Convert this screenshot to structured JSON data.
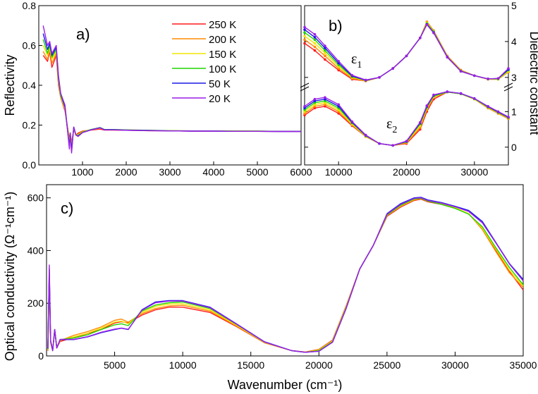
{
  "colors": {
    "250K": "#ff1c1c",
    "200K": "#ff8a00",
    "150K": "#f2e600",
    "100K": "#1fd400",
    "50K": "#1a1ae6",
    "20K": "#9b1fe8"
  },
  "legend": [
    {
      "key": "250K",
      "label": "250 K"
    },
    {
      "key": "200K",
      "label": "200 K"
    },
    {
      "key": "150K",
      "label": "150 K"
    },
    {
      "key": "100K",
      "label": "100 K"
    },
    {
      "key": "50K",
      "label": "50 K"
    },
    {
      "key": "20K",
      "label": "20 K"
    }
  ],
  "panels": {
    "a": {
      "letter": "a)",
      "ylabel": "Reflectivity"
    },
    "b": {
      "letter": "b)",
      "ylabel_right": "Dielectric constant",
      "eps1_base": "ε",
      "eps1_sub": "1",
      "eps2_base": "ε",
      "eps2_sub": "2"
    },
    "c": {
      "letter": "c)",
      "ylabel": "Optical conductivity (Ω⁻¹cm⁻¹)",
      "xlabel": "Wavenumber (cm⁻¹)"
    }
  },
  "chart_data": [
    {
      "id": "a",
      "type": "line",
      "xlim": [
        0,
        6000
      ],
      "ylim": [
        0,
        0.8
      ],
      "x_ticks": [
        "1000",
        "2000",
        "3000",
        "4000",
        "5000",
        "6000"
      ],
      "y_ticks": [
        "0.0",
        "0.2",
        "0.4",
        "0.6",
        "0.8"
      ],
      "ylabel": "Reflectivity",
      "x": [
        100,
        200,
        250,
        300,
        400,
        450,
        500,
        600,
        650,
        700,
        720,
        750,
        800,
        850,
        900,
        1000,
        1200,
        1400,
        1500,
        1700,
        2000,
        2500,
        3000,
        3500,
        4000,
        4500,
        5000,
        5500,
        6000
      ],
      "series": [
        {
          "key": "250K",
          "values": [
            0.55,
            0.52,
            0.57,
            0.49,
            0.55,
            0.4,
            0.34,
            0.27,
            0.2,
            0.13,
            0.16,
            0.11,
            0.18,
            0.15,
            0.16,
            0.17,
            0.175,
            0.18,
            0.175,
            0.175,
            0.174,
            0.172,
            0.171,
            0.17,
            0.17,
            0.17,
            0.169,
            0.168,
            0.168
          ]
        },
        {
          "key": "200K",
          "values": [
            0.57,
            0.53,
            0.58,
            0.51,
            0.56,
            0.41,
            0.34,
            0.28,
            0.2,
            0.12,
            0.16,
            0.1,
            0.18,
            0.15,
            0.155,
            0.168,
            0.177,
            0.183,
            0.177,
            0.177,
            0.175,
            0.173,
            0.172,
            0.171,
            0.171,
            0.17,
            0.17,
            0.169,
            0.169
          ]
        },
        {
          "key": "150K",
          "values": [
            0.6,
            0.55,
            0.59,
            0.53,
            0.57,
            0.42,
            0.35,
            0.28,
            0.19,
            0.11,
            0.16,
            0.09,
            0.185,
            0.15,
            0.15,
            0.166,
            0.178,
            0.186,
            0.178,
            0.178,
            0.176,
            0.174,
            0.172,
            0.171,
            0.171,
            0.17,
            0.17,
            0.169,
            0.169
          ]
        },
        {
          "key": "100K",
          "values": [
            0.63,
            0.56,
            0.6,
            0.54,
            0.58,
            0.43,
            0.35,
            0.29,
            0.19,
            0.1,
            0.16,
            0.08,
            0.19,
            0.15,
            0.148,
            0.165,
            0.178,
            0.188,
            0.178,
            0.178,
            0.176,
            0.174,
            0.172,
            0.171,
            0.171,
            0.17,
            0.17,
            0.169,
            0.169
          ]
        },
        {
          "key": "50K",
          "values": [
            0.66,
            0.58,
            0.61,
            0.55,
            0.59,
            0.44,
            0.36,
            0.29,
            0.19,
            0.09,
            0.16,
            0.07,
            0.19,
            0.15,
            0.145,
            0.163,
            0.177,
            0.187,
            0.177,
            0.177,
            0.175,
            0.173,
            0.171,
            0.17,
            0.17,
            0.169,
            0.169,
            0.168,
            0.168
          ]
        },
        {
          "key": "20K",
          "values": [
            0.7,
            0.6,
            0.62,
            0.56,
            0.6,
            0.45,
            0.36,
            0.3,
            0.19,
            0.08,
            0.16,
            0.06,
            0.19,
            0.15,
            0.143,
            0.162,
            0.176,
            0.186,
            0.176,
            0.176,
            0.174,
            0.172,
            0.171,
            0.17,
            0.17,
            0.169,
            0.169,
            0.168,
            0.168
          ]
        }
      ]
    },
    {
      "id": "b",
      "type": "line",
      "xlim": [
        5000,
        35000
      ],
      "ylim": [
        -0.5,
        5
      ],
      "x_ticks": [
        "10000",
        "20000",
        "30000"
      ],
      "y_ticks": [
        "0",
        "1",
        "3",
        "4",
        "5"
      ],
      "ylabel": "Dielectric constant",
      "x": [
        5000,
        6500,
        8000,
        10000,
        12000,
        14000,
        16000,
        18000,
        20000,
        22000,
        23000,
        24000,
        26000,
        28000,
        30000,
        32000,
        33500,
        35000
      ],
      "eps1": [
        {
          "key": "250K",
          "values": [
            3.95,
            3.75,
            3.5,
            3.2,
            2.95,
            2.9,
            3.0,
            3.25,
            3.6,
            4.1,
            4.55,
            4.3,
            3.6,
            3.2,
            3.05,
            2.95,
            2.95,
            3.15
          ]
        },
        {
          "key": "200K",
          "values": [
            4.05,
            3.85,
            3.6,
            3.25,
            2.97,
            2.9,
            3.0,
            3.25,
            3.6,
            4.1,
            4.55,
            4.3,
            3.6,
            3.2,
            3.05,
            2.95,
            2.95,
            3.15
          ]
        },
        {
          "key": "150K",
          "values": [
            4.15,
            3.95,
            3.68,
            3.3,
            3.0,
            2.91,
            3.0,
            3.25,
            3.6,
            4.1,
            4.52,
            4.28,
            3.58,
            3.18,
            3.05,
            2.95,
            2.95,
            3.17
          ]
        },
        {
          "key": "100K",
          "values": [
            4.25,
            4.05,
            3.75,
            3.35,
            3.02,
            2.92,
            3.0,
            3.25,
            3.6,
            4.1,
            4.5,
            4.27,
            3.57,
            3.18,
            3.05,
            2.96,
            2.96,
            3.2
          ]
        },
        {
          "key": "50K",
          "values": [
            4.33,
            4.12,
            3.82,
            3.4,
            3.04,
            2.92,
            3.0,
            3.25,
            3.6,
            4.1,
            4.48,
            4.25,
            3.57,
            3.17,
            3.05,
            2.96,
            2.97,
            3.22
          ]
        },
        {
          "key": "20K",
          "values": [
            4.4,
            4.2,
            3.88,
            3.45,
            3.06,
            2.93,
            3.0,
            3.25,
            3.6,
            4.1,
            4.47,
            4.24,
            3.56,
            3.17,
            3.05,
            2.96,
            2.97,
            3.25
          ]
        }
      ],
      "eps2": [
        {
          "key": "250K",
          "values": [
            0.9,
            1.1,
            1.15,
            0.95,
            0.6,
            0.3,
            0.1,
            0.05,
            0.1,
            0.5,
            1.0,
            1.35,
            1.55,
            1.5,
            1.35,
            1.1,
            0.95,
            0.8
          ]
        },
        {
          "key": "200K",
          "values": [
            0.95,
            1.15,
            1.2,
            1.0,
            0.62,
            0.3,
            0.1,
            0.05,
            0.12,
            0.55,
            1.05,
            1.4,
            1.55,
            1.5,
            1.35,
            1.1,
            0.95,
            0.8
          ]
        },
        {
          "key": "150K",
          "values": [
            1.0,
            1.2,
            1.25,
            1.05,
            0.65,
            0.31,
            0.1,
            0.05,
            0.14,
            0.6,
            1.1,
            1.42,
            1.55,
            1.5,
            1.35,
            1.12,
            0.97,
            0.82
          ]
        },
        {
          "key": "100K",
          "values": [
            1.05,
            1.25,
            1.3,
            1.1,
            0.68,
            0.32,
            0.1,
            0.05,
            0.15,
            0.65,
            1.12,
            1.44,
            1.55,
            1.5,
            1.36,
            1.13,
            0.98,
            0.83
          ]
        },
        {
          "key": "50K",
          "values": [
            1.1,
            1.3,
            1.35,
            1.15,
            0.7,
            0.33,
            0.1,
            0.05,
            0.16,
            0.68,
            1.15,
            1.46,
            1.56,
            1.51,
            1.37,
            1.14,
            0.99,
            0.84
          ]
        },
        {
          "key": "20K",
          "values": [
            1.15,
            1.35,
            1.4,
            1.2,
            0.72,
            0.34,
            0.1,
            0.05,
            0.17,
            0.7,
            1.17,
            1.47,
            1.56,
            1.51,
            1.37,
            1.15,
            1.0,
            0.85
          ]
        }
      ]
    },
    {
      "id": "c",
      "type": "line",
      "xlim": [
        0,
        35000
      ],
      "ylim": [
        0,
        650
      ],
      "x_ticks": [
        "5000",
        "10000",
        "15000",
        "20000",
        "25000",
        "30000",
        "35000"
      ],
      "y_ticks": [
        "0",
        "200",
        "400",
        "600"
      ],
      "xlabel": "Wavenumber (cm⁻¹)",
      "ylabel": "Optical conductivity (Ω⁻¹cm⁻¹)",
      "x": [
        100,
        200,
        300,
        450,
        600,
        750,
        1000,
        2000,
        3000,
        4000,
        5000,
        5500,
        6000,
        7000,
        8000,
        9000,
        10000,
        12000,
        14000,
        16000,
        18000,
        19000,
        20000,
        21000,
        22000,
        23000,
        24000,
        25000,
        26000,
        27000,
        27500,
        28000,
        29000,
        30000,
        31000,
        32000,
        33000,
        34000,
        35000
      ],
      "series": [
        {
          "key": "250K",
          "values": [
            20,
            300,
            50,
            20,
            100,
            30,
            55,
            70,
            85,
            100,
            125,
            130,
            125,
            155,
            175,
            185,
            185,
            165,
            110,
            50,
            20,
            15,
            25,
            60,
            190,
            330,
            420,
            530,
            565,
            590,
            595,
            585,
            575,
            560,
            540,
            480,
            400,
            320,
            250
          ]
        },
        {
          "key": "200K",
          "values": [
            22,
            305,
            52,
            20,
            100,
            30,
            58,
            78,
            92,
            110,
            135,
            140,
            128,
            160,
            180,
            190,
            192,
            170,
            112,
            50,
            20,
            15,
            24,
            58,
            188,
            330,
            420,
            532,
            568,
            592,
            597,
            587,
            578,
            562,
            540,
            480,
            395,
            315,
            260
          ]
        },
        {
          "key": "150K",
          "values": [
            24,
            310,
            54,
            20,
            100,
            30,
            60,
            72,
            86,
            105,
            128,
            132,
            122,
            165,
            188,
            197,
            198,
            175,
            115,
            52,
            20,
            14,
            22,
            56,
            185,
            330,
            420,
            535,
            570,
            595,
            598,
            588,
            578,
            563,
            540,
            485,
            405,
            325,
            265
          ]
        },
        {
          "key": "100K",
          "values": [
            26,
            320,
            56,
            20,
            100,
            30,
            62,
            68,
            80,
            100,
            118,
            122,
            115,
            170,
            193,
            202,
            205,
            180,
            118,
            53,
            20,
            14,
            20,
            54,
            183,
            330,
            420,
            535,
            572,
            596,
            598,
            588,
            575,
            560,
            538,
            490,
            410,
            335,
            270
          ]
        },
        {
          "key": "50K",
          "values": [
            28,
            330,
            58,
            20,
            100,
            30,
            62,
            62,
            72,
            88,
            100,
            105,
            100,
            175,
            205,
            210,
            210,
            185,
            120,
            54,
            20,
            14,
            18,
            52,
            180,
            330,
            420,
            540,
            578,
            600,
            602,
            592,
            582,
            568,
            552,
            510,
            430,
            350,
            290
          ]
        },
        {
          "key": "20K",
          "values": [
            30,
            345,
            60,
            20,
            100,
            30,
            63,
            63,
            73,
            90,
            102,
            106,
            101,
            173,
            202,
            208,
            208,
            183,
            119,
            53,
            20,
            14,
            18,
            52,
            180,
            330,
            420,
            538,
            575,
            598,
            600,
            590,
            580,
            566,
            548,
            505,
            428,
            348,
            285
          ]
        }
      ]
    }
  ]
}
